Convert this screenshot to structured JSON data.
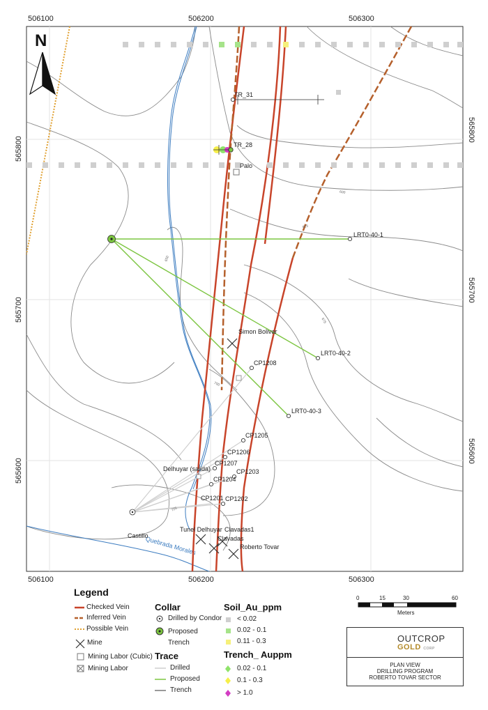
{
  "map": {
    "easting_ticks": [
      "506100",
      "506200",
      "506300"
    ],
    "northing_ticks": [
      "565800",
      "565700",
      "565600"
    ],
    "north_label": "N",
    "features": {
      "collars": [
        {
          "label": "TR_31"
        },
        {
          "label": "TR_28"
        },
        {
          "label": "Palo"
        },
        {
          "label": "LRT0-40-1"
        },
        {
          "label": "LRT0-40-2"
        },
        {
          "label": "LRT0-40-3"
        },
        {
          "label": "CP1208"
        },
        {
          "label": "CP1205"
        },
        {
          "label": "CP1206"
        },
        {
          "label": "CP1207"
        },
        {
          "label": "CP1203"
        },
        {
          "label": "CP1204"
        },
        {
          "label": "CP1201"
        },
        {
          "label": "CP1202"
        }
      ],
      "mines": [
        {
          "label": "Simon Bolivar"
        },
        {
          "label": "Tunel Delhuyar"
        },
        {
          "label": "Clavadas1"
        },
        {
          "label": "Clavadas"
        },
        {
          "label": "Roberto Tovar"
        }
      ],
      "places": {
        "delhuyar": "Delhuyar (salida)",
        "castillo": "Castillo",
        "stream": "Quebrada Morales"
      },
      "contours": [
        "600",
        "625",
        "650",
        "675",
        "700",
        "725",
        "750"
      ]
    }
  },
  "legend": {
    "title": "Legend",
    "veins": [
      "Checked Vein",
      "Inferred Vein",
      "Possible Vein"
    ],
    "mine": "Mine",
    "mining_labor_cubic": "Mining Labor (Cubic)",
    "mining_labor": "Mining Labor",
    "collar_title": "Collar",
    "collar_items": [
      "Drilled by Condor",
      "Proposed",
      "Trench"
    ],
    "trace_title": "Trace",
    "trace_items": [
      "Drilled",
      "Proposed",
      "Trench"
    ],
    "soil_title": "Soil_Au_ppm",
    "soil_items": [
      "< 0.02",
      "0.02 - 0.1",
      "0.11 - 0.3"
    ],
    "trench_title": "Trench_ Auppm",
    "trench_items": [
      "0.02 - 0.1",
      "0.1 - 0.3",
      "> 1.0"
    ]
  },
  "scale": {
    "ticks": [
      "0",
      "15",
      "30",
      "60"
    ],
    "unit": "Meters"
  },
  "title_block": {
    "company": "OUTCROP",
    "company2": "GOLD",
    "corp": "CORP",
    "lines": [
      "PLAN VIEW",
      "DRILLING PROGRAM",
      "ROBERTO TOVAR SECTOR"
    ]
  },
  "colors": {
    "checked_vein": "#c8442a",
    "inferred_vein": "#b5602c",
    "possible_vein": "#e0a030",
    "stream": "#3c7cc0",
    "proposed": "#7cc540",
    "drilled": "#cfcfcf",
    "contour": "#8a8a8a",
    "soil_low": "#cfcfcf",
    "soil_mid": "#a6e38a",
    "soil_high": "#f6f07a",
    "trench_low": "#8fe36a",
    "trench_mid": "#f6ef4a",
    "trench_high": "#d33cc3"
  }
}
